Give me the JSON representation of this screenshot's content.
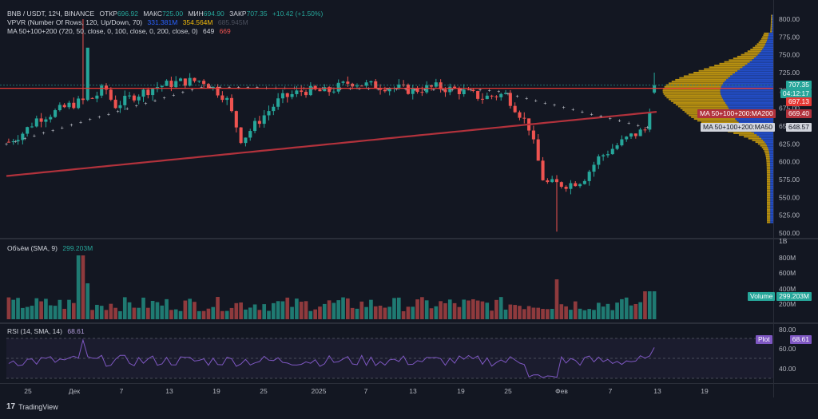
{
  "symbol_line": {
    "symbol": "BNB / USDT, 12Ч, BINANCE",
    "open_label": "ОТКР",
    "open": "696.92",
    "high_label": "МАКС",
    "high": "725.00",
    "low_label": "МИН",
    "low": "694.90",
    "close_label": "ЗАКР",
    "close": "707.35",
    "change": "+10.42 (+1.50%)"
  },
  "vpvr_line": {
    "title": "VPVR (Number Of Rows, 120, Up/Down, 70)",
    "up": "331.381M",
    "down": "354.564M",
    "total": "685.945M"
  },
  "ma_line": {
    "title": "MA 50+100+200 (720, 50, close, 0, 100, close, 0, 200, close, 0)",
    "v1": "649",
    "v2": "669"
  },
  "volume_line": {
    "title": "Объём (SMA, 9)",
    "value": "299.203M"
  },
  "rsi_line": {
    "title": "RSI (14, SMA, 14)",
    "value": "68.61"
  },
  "price_axis": {
    "ticks": [
      "800.00",
      "775.00",
      "750.00",
      "725.00",
      "700.00",
      "675.00",
      "650.00",
      "625.00",
      "600.00",
      "575.00",
      "550.00",
      "525.00",
      "500.00"
    ]
  },
  "price_tags": {
    "last": "707.35",
    "countdown": "04:12:17",
    "level": "697.13",
    "ma200": "669.40",
    "ma50": "648.57"
  },
  "ma_tags": {
    "ma200": "MA 50+100+200:MA200",
    "ma50": "MA 50+100+200:MA50"
  },
  "volume_axis": {
    "ticks": [
      "1B",
      "800M",
      "600M",
      "400M",
      "200M"
    ]
  },
  "volume_tag": {
    "label": "Volume",
    "value": "299.203M"
  },
  "rsi_axis": {
    "ticks": [
      "80.00",
      "60.00",
      "40.00"
    ]
  },
  "rsi_tag": {
    "label": "Plot",
    "value": "68.61"
  },
  "time_axis": {
    "labels": [
      "25",
      "Дек",
      "7",
      "13",
      "19",
      "25",
      "2025",
      "7",
      "13",
      "19",
      "25",
      "Фев",
      "7",
      "13",
      "19"
    ]
  },
  "brand": "TradingView",
  "colors": {
    "up": "#26a69a",
    "down": "#ef5350",
    "background": "#131722",
    "ma200": "#b2323c",
    "level": "#e53935",
    "vp_up": "#2962ff",
    "vp_down": "#f0b90b",
    "rsi": "#7e57c2"
  },
  "chart_data": {
    "type": "candlestick",
    "series": [
      {
        "name": "MA 50+100+200",
        "kind": "indicator"
      }
    ],
    "ylim": [
      490,
      815
    ]
  }
}
